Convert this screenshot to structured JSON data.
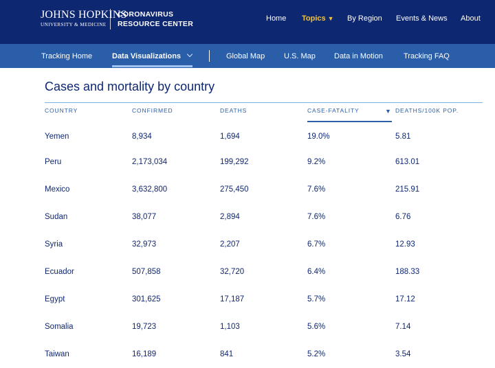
{
  "header": {
    "logo_main": "JOHNS HOPKINS",
    "logo_sub": "UNIVERSITY & MEDICINE",
    "site_title_line1": "CORONAVIRUS",
    "site_title_line2": "RESOURCE CENTER",
    "nav": [
      {
        "label": "Home"
      },
      {
        "label": "Topics",
        "caret": "▼",
        "active": true
      },
      {
        "label": "By Region"
      },
      {
        "label": "Events & News"
      },
      {
        "label": "About"
      }
    ]
  },
  "subnav": {
    "items": [
      {
        "label": "Tracking Home"
      },
      {
        "label": "Data Visualizations",
        "active": true
      },
      {
        "label": "Global Map"
      },
      {
        "label": "U.S. Map"
      },
      {
        "label": "Data in Motion"
      },
      {
        "label": "Tracking FAQ"
      }
    ]
  },
  "page": {
    "title": "Cases and mortality by country"
  },
  "table": {
    "columns": [
      "COUNTRY",
      "CONFIRMED",
      "DEATHS",
      "CASE-FATALITY",
      "DEATHS/100K POP."
    ],
    "sort_icon": "▼",
    "rows": [
      [
        "Yemen",
        "8,934",
        "1,694",
        "19.0%",
        "5.81"
      ],
      [
        "Peru",
        "2,173,034",
        "199,292",
        "9.2%",
        "613.01"
      ],
      [
        "Mexico",
        "3,632,800",
        "275,450",
        "7.6%",
        "215.91"
      ],
      [
        "Sudan",
        "38,077",
        "2,894",
        "7.6%",
        "6.76"
      ],
      [
        "Syria",
        "32,973",
        "2,207",
        "6.7%",
        "12.93"
      ],
      [
        "Ecuador",
        "507,858",
        "32,720",
        "6.4%",
        "188.33"
      ],
      [
        "Egypt",
        "301,625",
        "17,187",
        "5.7%",
        "17.12"
      ],
      [
        "Somalia",
        "19,723",
        "1,103",
        "5.6%",
        "7.14"
      ],
      [
        "Taiwan",
        "16,189",
        "841",
        "5.2%",
        "3.54"
      ]
    ]
  },
  "colors": {
    "header_bg": "#0e2771",
    "subnav_bg": "#2a5ea9",
    "active_nav": "#f3c338",
    "text": "#0e2771"
  }
}
